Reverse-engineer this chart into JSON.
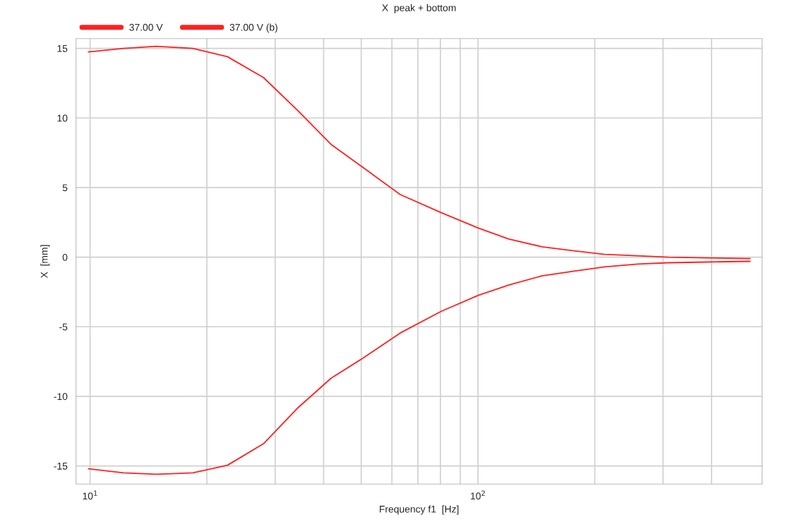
{
  "chart_data": {
    "type": "line",
    "title": "X  peak + bottom",
    "xlabel": "Frequency f1  [Hz]",
    "ylabel": "X  [mm]",
    "log": "x",
    "grid": true,
    "legend": "top left",
    "marker": "none",
    "line_style": "solid",
    "xlim": [
      9.2,
      540
    ],
    "ylim": [
      -16.3,
      15.7
    ],
    "xticks": [
      {
        "value": 10,
        "label": "10$^{1}$"
      },
      {
        "value": 20,
        "label": null
      },
      {
        "value": 30,
        "label": null
      },
      {
        "value": 40,
        "label": null
      },
      {
        "value": 50,
        "label": null
      },
      {
        "value": 60,
        "label": null
      },
      {
        "value": 70,
        "label": null
      },
      {
        "value": 80,
        "label": null
      },
      {
        "value": 90,
        "label": null
      },
      {
        "value": 100,
        "label": "10$^{2}$"
      },
      {
        "value": 200,
        "label": null
      },
      {
        "value": 300,
        "label": null
      },
      {
        "value": 400,
        "label": null
      }
    ],
    "yticks": [
      -15,
      -10,
      -5,
      0,
      5,
      10,
      15
    ],
    "x": [
      9.9,
      12.2,
      14.8,
      18.4,
      22.6,
      28,
      34.4,
      41.8,
      50.2,
      63,
      80.3,
      100,
      120,
      146,
      177,
      212,
      258,
      310,
      389,
      503
    ],
    "series": [
      {
        "name": "37.00 V",
        "color": "#ff2020",
        "values": [
          14.74,
          15.0,
          15.15,
          15.0,
          14.4,
          12.9,
          10.5,
          8.1,
          6.5,
          4.5,
          3.2,
          2.1,
          1.3,
          0.75,
          0.45,
          0.2,
          0.1,
          0.0,
          -0.05,
          -0.1
        ]
      },
      {
        "name": "37.00 V (b)",
        "color": "#ff2020",
        "values": [
          -15.2,
          -15.5,
          -15.6,
          -15.5,
          -14.95,
          -13.4,
          -10.8,
          -8.7,
          -7.3,
          -5.45,
          -3.9,
          -2.75,
          -2.0,
          -1.35,
          -1.0,
          -0.7,
          -0.5,
          -0.4,
          -0.35,
          -0.3
        ]
      }
    ]
  }
}
